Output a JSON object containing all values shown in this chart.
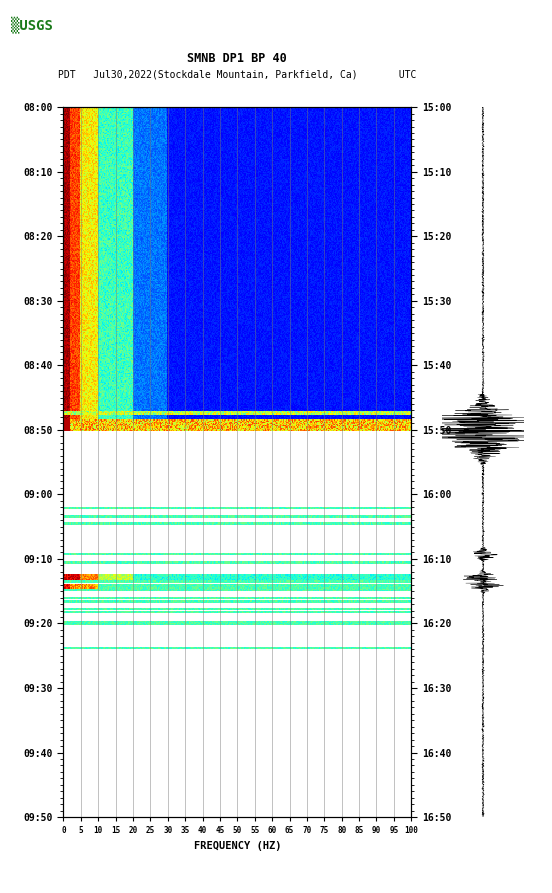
{
  "title_line1": "SMNB DP1 BP 40",
  "title_line2": "PDT   Jul30,2022(Stockdale Mountain, Parkfield, Ca)       UTC",
  "xlabel": "FREQUENCY (HZ)",
  "freq_min": 0,
  "freq_max": 100,
  "freq_ticks": [
    0,
    5,
    10,
    15,
    20,
    25,
    30,
    35,
    40,
    45,
    50,
    55,
    60,
    65,
    70,
    75,
    80,
    85,
    90,
    95,
    100
  ],
  "left_time_labels": [
    "08:00",
    "08:10",
    "08:20",
    "08:30",
    "08:40",
    "08:50",
    "09:00",
    "09:10",
    "09:20",
    "09:30",
    "09:40",
    "09:50"
  ],
  "right_time_labels": [
    "15:00",
    "15:10",
    "15:20",
    "15:30",
    "15:40",
    "15:50",
    "16:00",
    "16:10",
    "16:20",
    "16:30",
    "16:40",
    "16:50"
  ],
  "bg_color": "#ffffff",
  "grid_color": "#777777",
  "spectrogram_colormap": "jet",
  "fig_width": 5.52,
  "fig_height": 8.93,
  "n_time": 600,
  "n_freq": 400
}
